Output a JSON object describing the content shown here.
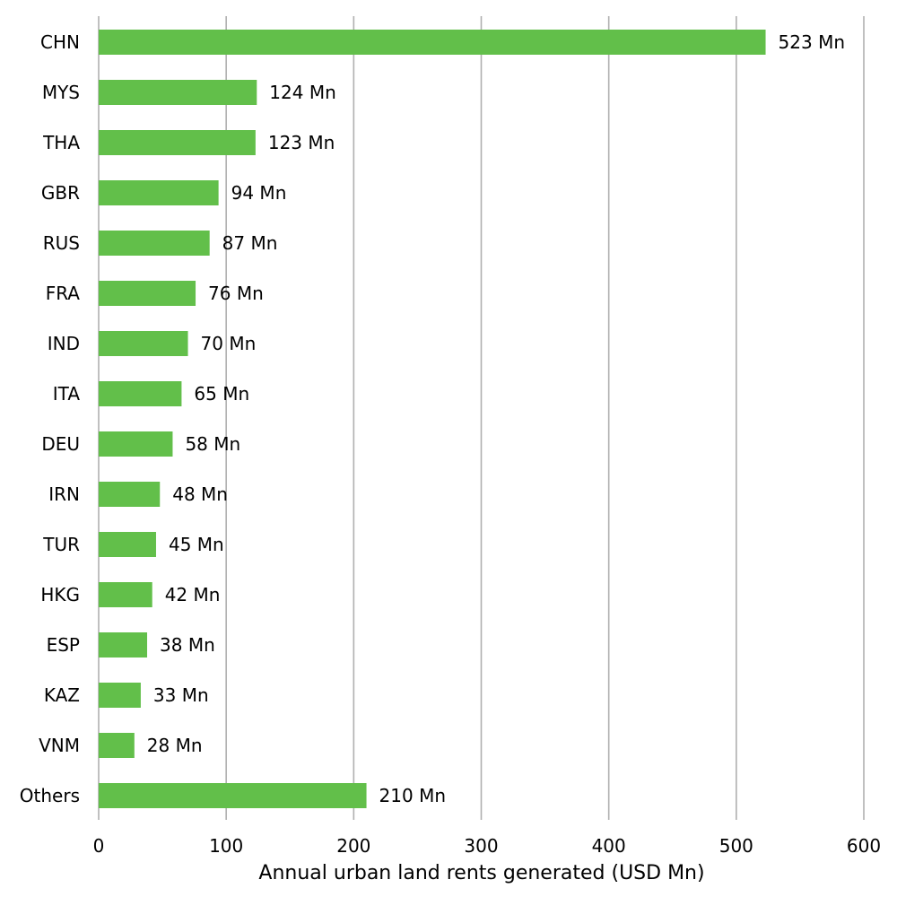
{
  "chart_data": {
    "type": "bar",
    "orientation": "horizontal",
    "categories": [
      "CHN",
      "MYS",
      "THA",
      "GBR",
      "RUS",
      "FRA",
      "IND",
      "ITA",
      "DEU",
      "IRN",
      "TUR",
      "HKG",
      "ESP",
      "KAZ",
      "VNM",
      "Others"
    ],
    "values": [
      523,
      124,
      123,
      94,
      87,
      76,
      70,
      65,
      58,
      48,
      45,
      42,
      38,
      33,
      28,
      210
    ],
    "value_labels": [
      "523 Mn",
      "124 Mn",
      "123 Mn",
      "94 Mn",
      "87 Mn",
      "76 Mn",
      "70 Mn",
      "65 Mn",
      "58 Mn",
      "48 Mn",
      "45 Mn",
      "42 Mn",
      "38 Mn",
      "33 Mn",
      "28 Mn",
      "210 Mn"
    ],
    "title": "",
    "xlabel": "Annual urban land rents generated (USD Mn)",
    "ylabel": "",
    "xlim": [
      0,
      600
    ],
    "xticks": [
      0,
      100,
      200,
      300,
      400,
      500,
      600
    ],
    "grid": "vertical",
    "bar_color": "#62bf4a",
    "grid_color": "#b0b0b0"
  }
}
